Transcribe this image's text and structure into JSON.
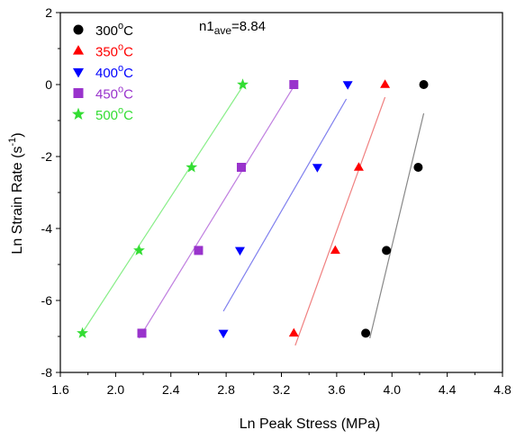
{
  "chart_data": {
    "type": "scatter",
    "xlabel": "Ln Peak Stress (MPa)",
    "ylabel": "Ln Strain Rate (s-1)",
    "ylabel_main": "Ln Strain Rate (s",
    "ylabel_sup": "-1",
    "ylabel_close": ")",
    "xlim": [
      1.6,
      4.8
    ],
    "ylim": [
      -8,
      2
    ],
    "xticks": [
      "1.6",
      "2.0",
      "2.4",
      "2.8",
      "3.2",
      "3.6",
      "4.0",
      "4.4",
      "4.8"
    ],
    "yticks": [
      "-8",
      "-6",
      "-4",
      "-2",
      "0",
      "2"
    ],
    "grid": false,
    "legend_position": "top-left",
    "annotation": {
      "main": "n1",
      "sub": "ave",
      "value": "=8.84"
    },
    "series": [
      {
        "name": "300°C",
        "name_num": "300",
        "name_unit": "C",
        "color": "#000000",
        "marker": "circle",
        "line_color": "#888888",
        "x": [
          3.81,
          3.96,
          4.19,
          4.23
        ],
        "y": [
          -6.91,
          -4.61,
          -2.3,
          0.0
        ],
        "fit": [
          [
            3.84,
            -7.05
          ],
          [
            4.23,
            -0.8
          ]
        ]
      },
      {
        "name": "350°C",
        "name_num": "350",
        "name_unit": "C",
        "color": "#ff0000",
        "marker": "triangle-up",
        "line_color": "#f08080",
        "x": [
          3.29,
          3.59,
          3.76,
          3.95
        ],
        "y": [
          -6.91,
          -4.61,
          -2.3,
          0.0
        ],
        "fit": [
          [
            3.3,
            -7.25
          ],
          [
            3.95,
            -0.35
          ]
        ]
      },
      {
        "name": "400°C",
        "name_num": "400",
        "name_unit": "C",
        "color": "#0000ff",
        "marker": "triangle-down",
        "line_color": "#8080ee",
        "x": [
          2.78,
          2.9,
          3.46,
          3.68
        ],
        "y": [
          -6.91,
          -4.61,
          -2.3,
          0.0
        ],
        "fit": [
          [
            2.78,
            -6.3
          ],
          [
            3.67,
            -0.4
          ]
        ]
      },
      {
        "name": "450°C",
        "name_num": "450",
        "name_unit": "C",
        "color": "#9933cc",
        "marker": "square",
        "line_color": "#c080e0",
        "x": [
          2.19,
          2.6,
          2.91,
          3.29
        ],
        "y": [
          -6.91,
          -4.61,
          -2.3,
          0.0
        ],
        "fit": [
          [
            2.17,
            -7.05
          ],
          [
            3.29,
            -0.05
          ]
        ]
      },
      {
        "name": "500°C",
        "name_num": "500",
        "name_unit": "C",
        "color": "#33dd33",
        "marker": "star",
        "line_color": "#88ee88",
        "x": [
          1.76,
          2.17,
          2.55,
          2.92
        ],
        "y": [
          -6.91,
          -4.61,
          -2.3,
          0.0
        ],
        "fit": [
          [
            1.75,
            -6.95
          ],
          [
            2.92,
            -0.05
          ]
        ]
      }
    ]
  }
}
